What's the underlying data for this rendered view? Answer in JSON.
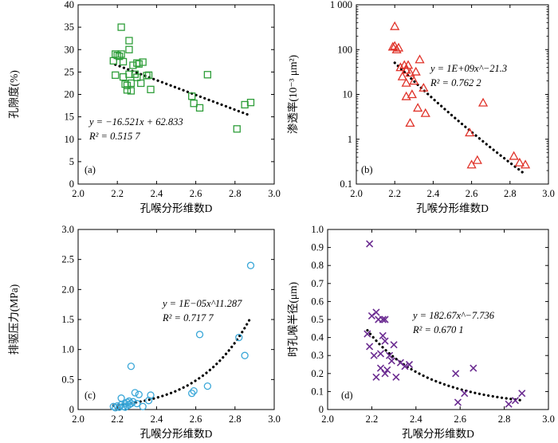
{
  "chart_data": [
    {
      "id": "a",
      "type": "scatter",
      "panel_label": "(a)",
      "xlabel": "孔喉分形维数D",
      "ylabel": "孔隙度(%)",
      "xlim": [
        2.0,
        3.0
      ],
      "ylim": [
        0,
        40
      ],
      "xticks": [
        "2.0",
        "2.2",
        "2.4",
        "2.6",
        "2.8",
        "3.0"
      ],
      "yticks": [
        "0",
        "5",
        "10",
        "15",
        "20",
        "25",
        "30",
        "35",
        "40"
      ],
      "yscale": "linear",
      "marker": "square",
      "color": "#2f9e3a",
      "equation": "y = −16.521x + 62.833",
      "r2": "R² = 0.515 7",
      "trend": {
        "kind": "linear",
        "a": -16.521,
        "b": 62.833,
        "x_range": [
          2.19,
          2.88
        ]
      },
      "points": [
        [
          2.18,
          27.5
        ],
        [
          2.19,
          24.3
        ],
        [
          2.19,
          29.0
        ],
        [
          2.2,
          28.7
        ],
        [
          2.21,
          28.5
        ],
        [
          2.22,
          35.0
        ],
        [
          2.22,
          29.0
        ],
        [
          2.23,
          23.9
        ],
        [
          2.23,
          27.3
        ],
        [
          2.24,
          22.3
        ],
        [
          2.25,
          22.0
        ],
        [
          2.25,
          21.0
        ],
        [
          2.26,
          32.0
        ],
        [
          2.26,
          30.0
        ],
        [
          2.26,
          24.5
        ],
        [
          2.27,
          22.5
        ],
        [
          2.27,
          20.8
        ],
        [
          2.28,
          26.5
        ],
        [
          2.29,
          24.5
        ],
        [
          2.3,
          27.0
        ],
        [
          2.3,
          23.8
        ],
        [
          2.31,
          26.8
        ],
        [
          2.32,
          22.5
        ],
        [
          2.33,
          27.2
        ],
        [
          2.35,
          24.2
        ],
        [
          2.36,
          24.3
        ],
        [
          2.37,
          21.1
        ],
        [
          2.58,
          19.6
        ],
        [
          2.59,
          18.0
        ],
        [
          2.62,
          17.0
        ],
        [
          2.66,
          24.4
        ],
        [
          2.81,
          12.3
        ],
        [
          2.85,
          17.7
        ],
        [
          2.88,
          18.2
        ]
      ]
    },
    {
      "id": "b",
      "type": "scatter",
      "panel_label": "(b)",
      "xlabel": "孔喉分形维数D",
      "ylabel": "渗透率(10⁻³ μm²)",
      "xlim": [
        2.0,
        3.0
      ],
      "ylim": [
        0.1,
        1000
      ],
      "xticks": [
        "2.0",
        "2.2",
        "2.4",
        "2.6",
        "2.8",
        "3.0"
      ],
      "yticks": [
        "0.1",
        "1",
        "10",
        "100",
        "1 000"
      ],
      "yscale": "log",
      "marker": "triangle",
      "color": "#e0332a",
      "equation": "y = 1E+09x^−21.3",
      "r2": "R² = 0.762 2",
      "trend": {
        "kind": "power",
        "a": 1000000000,
        "b": -21.3,
        "x_range": [
          2.2,
          2.88
        ]
      },
      "points": [
        [
          2.19,
          115
        ],
        [
          2.2,
          120
        ],
        [
          2.2,
          330
        ],
        [
          2.21,
          100
        ],
        [
          2.22,
          110
        ],
        [
          2.23,
          40
        ],
        [
          2.24,
          25
        ],
        [
          2.25,
          45
        ],
        [
          2.26,
          35
        ],
        [
          2.26,
          18
        ],
        [
          2.26,
          9
        ],
        [
          2.27,
          45
        ],
        [
          2.28,
          30
        ],
        [
          2.28,
          2.3
        ],
        [
          2.29,
          10
        ],
        [
          2.3,
          20
        ],
        [
          2.31,
          32
        ],
        [
          2.32,
          5
        ],
        [
          2.33,
          60
        ],
        [
          2.35,
          14
        ],
        [
          2.36,
          3.8
        ],
        [
          2.59,
          1.4
        ],
        [
          2.6,
          0.27
        ],
        [
          2.63,
          0.34
        ],
        [
          2.66,
          6.5
        ],
        [
          2.82,
          0.42
        ],
        [
          2.85,
          0.3
        ],
        [
          2.88,
          0.27
        ]
      ]
    },
    {
      "id": "c",
      "type": "scatter",
      "panel_label": "(c)",
      "xlabel": "孔喉分形维数D",
      "ylabel": "排驱压力(MPa)",
      "xlim": [
        2.0,
        3.0
      ],
      "ylim": [
        0,
        3.0
      ],
      "xticks": [
        "2.0",
        "2.2",
        "2.4",
        "2.6",
        "2.8",
        "3.0"
      ],
      "yticks": [
        "0",
        "0.5",
        "1.0",
        "1.5",
        "2.0",
        "2.5",
        "3.0"
      ],
      "yscale": "linear",
      "marker": "circle",
      "color": "#3aa7d8",
      "equation": "y = 1E−05x^11.287",
      "r2": "R² = 0.717 7",
      "trend": {
        "kind": "power",
        "a": 1e-05,
        "b": 11.287,
        "x_range": [
          2.18,
          2.88
        ]
      },
      "points": [
        [
          2.18,
          0.05
        ],
        [
          2.19,
          0.03
        ],
        [
          2.2,
          0.06
        ],
        [
          2.21,
          0.04
        ],
        [
          2.22,
          0.08
        ],
        [
          2.22,
          0.19
        ],
        [
          2.23,
          0.05
        ],
        [
          2.24,
          0.1
        ],
        [
          2.24,
          0.04
        ],
        [
          2.25,
          0.12
        ],
        [
          2.25,
          0.06
        ],
        [
          2.26,
          0.14
        ],
        [
          2.26,
          0.08
        ],
        [
          2.27,
          0.72
        ],
        [
          2.27,
          0.1
        ],
        [
          2.28,
          0.13
        ],
        [
          2.29,
          0.28
        ],
        [
          2.3,
          0.1
        ],
        [
          2.31,
          0.25
        ],
        [
          2.33,
          0.05
        ],
        [
          2.36,
          0.15
        ],
        [
          2.37,
          0.24
        ],
        [
          2.58,
          0.27
        ],
        [
          2.59,
          0.31
        ],
        [
          2.62,
          1.25
        ],
        [
          2.66,
          0.39
        ],
        [
          2.82,
          1.2
        ],
        [
          2.85,
          0.9
        ],
        [
          2.88,
          2.4
        ]
      ]
    },
    {
      "id": "d",
      "type": "scatter",
      "panel_label": "(d)",
      "xlabel": "孔喉分形维数D",
      "ylabel": "时孔喉半径(μm)",
      "xlim": [
        2.0,
        3.0
      ],
      "ylim": [
        0,
        1.0
      ],
      "xticks": [
        "2.0",
        "2.2",
        "2.4",
        "2.6",
        "2.8",
        "3.0"
      ],
      "yticks": [
        "0",
        "0.1",
        "0.2",
        "0.3",
        "0.4",
        "0.5",
        "0.6",
        "0.7",
        "0.8",
        "0.9",
        "1.0"
      ],
      "yscale": "linear",
      "marker": "x",
      "color": "#6b2c91",
      "equation": "y = 182.67x^−7.736",
      "r2": "R² = 0.670 1",
      "trend": {
        "kind": "power",
        "a": 182.67,
        "b": -7.736,
        "x_range": [
          2.18,
          2.88
        ]
      },
      "points": [
        [
          2.19,
          0.92
        ],
        [
          2.18,
          0.42
        ],
        [
          2.19,
          0.35
        ],
        [
          2.2,
          0.52
        ],
        [
          2.21,
          0.3
        ],
        [
          2.22,
          0.54
        ],
        [
          2.22,
          0.18
        ],
        [
          2.23,
          0.5
        ],
        [
          2.24,
          0.31
        ],
        [
          2.24,
          0.23
        ],
        [
          2.25,
          0.5
        ],
        [
          2.25,
          0.41
        ],
        [
          2.26,
          0.5
        ],
        [
          2.26,
          0.38
        ],
        [
          2.26,
          0.2
        ],
        [
          2.27,
          0.22
        ],
        [
          2.28,
          0.3
        ],
        [
          2.29,
          0.27
        ],
        [
          2.3,
          0.36
        ],
        [
          2.31,
          0.18
        ],
        [
          2.33,
          0.26
        ],
        [
          2.35,
          0.24
        ],
        [
          2.37,
          0.25
        ],
        [
          2.58,
          0.2
        ],
        [
          2.59,
          0.04
        ],
        [
          2.62,
          0.09
        ],
        [
          2.66,
          0.23
        ],
        [
          2.82,
          0.03
        ],
        [
          2.85,
          0.05
        ],
        [
          2.88,
          0.09
        ]
      ]
    }
  ]
}
